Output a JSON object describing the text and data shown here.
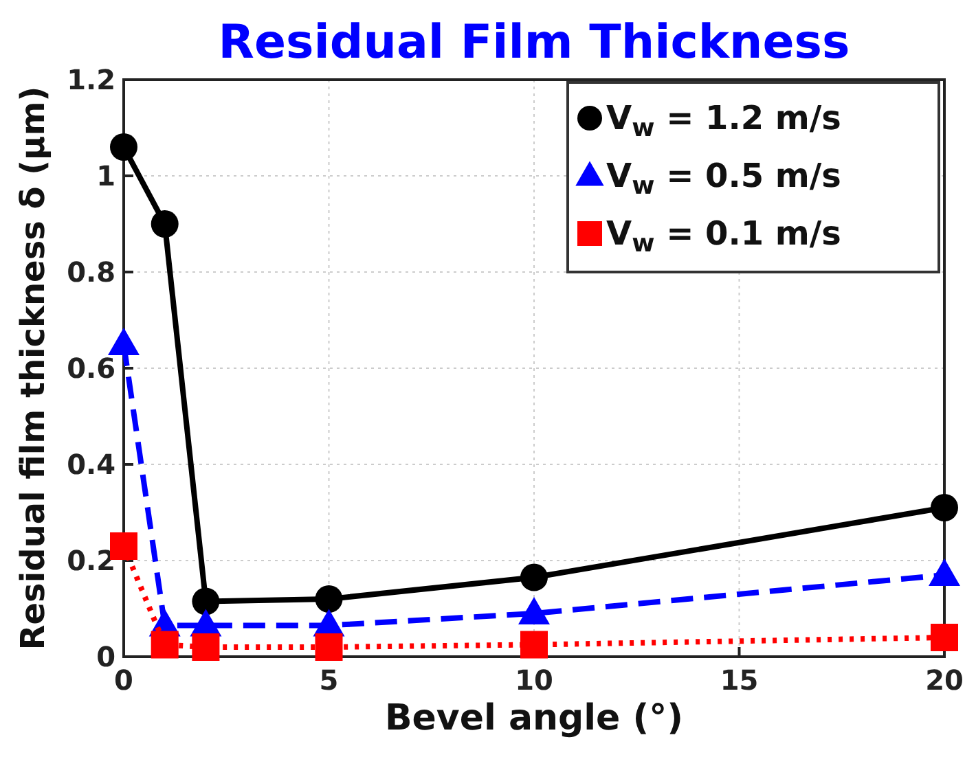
{
  "chart_data": {
    "type": "line",
    "title": "Residual Film Thickness",
    "xlabel": "Bevel angle (°)",
    "ylabel": "Residual film thickness δ (μm)",
    "x": [
      0,
      1,
      2,
      5,
      10,
      20
    ],
    "series": [
      {
        "name": "V$_{w}$ = 1.2 m/s",
        "color": "#000000",
        "marker": "circle",
        "line_style": "solid",
        "values": [
          1.06,
          0.9,
          0.115,
          0.12,
          0.165,
          0.31
        ]
      },
      {
        "name": "V$_{w}$ = 0.5 m/s",
        "color": "#0000ff",
        "marker": "triangle",
        "line_style": "dashed",
        "values": [
          0.65,
          0.065,
          0.065,
          0.065,
          0.09,
          0.17
        ]
      },
      {
        "name": "V$_{w}$ = 0.1 m/s",
        "color": "#ff0000",
        "marker": "square",
        "line_style": "dotted",
        "values": [
          0.23,
          0.025,
          0.02,
          0.02,
          0.025,
          0.04
        ]
      }
    ],
    "xlim": [
      0,
      20
    ],
    "xticks": [
      0,
      5,
      10,
      15,
      20
    ],
    "ylim": [
      0,
      1.2
    ],
    "yticks": [
      0,
      0.2,
      0.4,
      0.6,
      0.8,
      1,
      1.2
    ],
    "grid": true,
    "legend": "top right"
  }
}
